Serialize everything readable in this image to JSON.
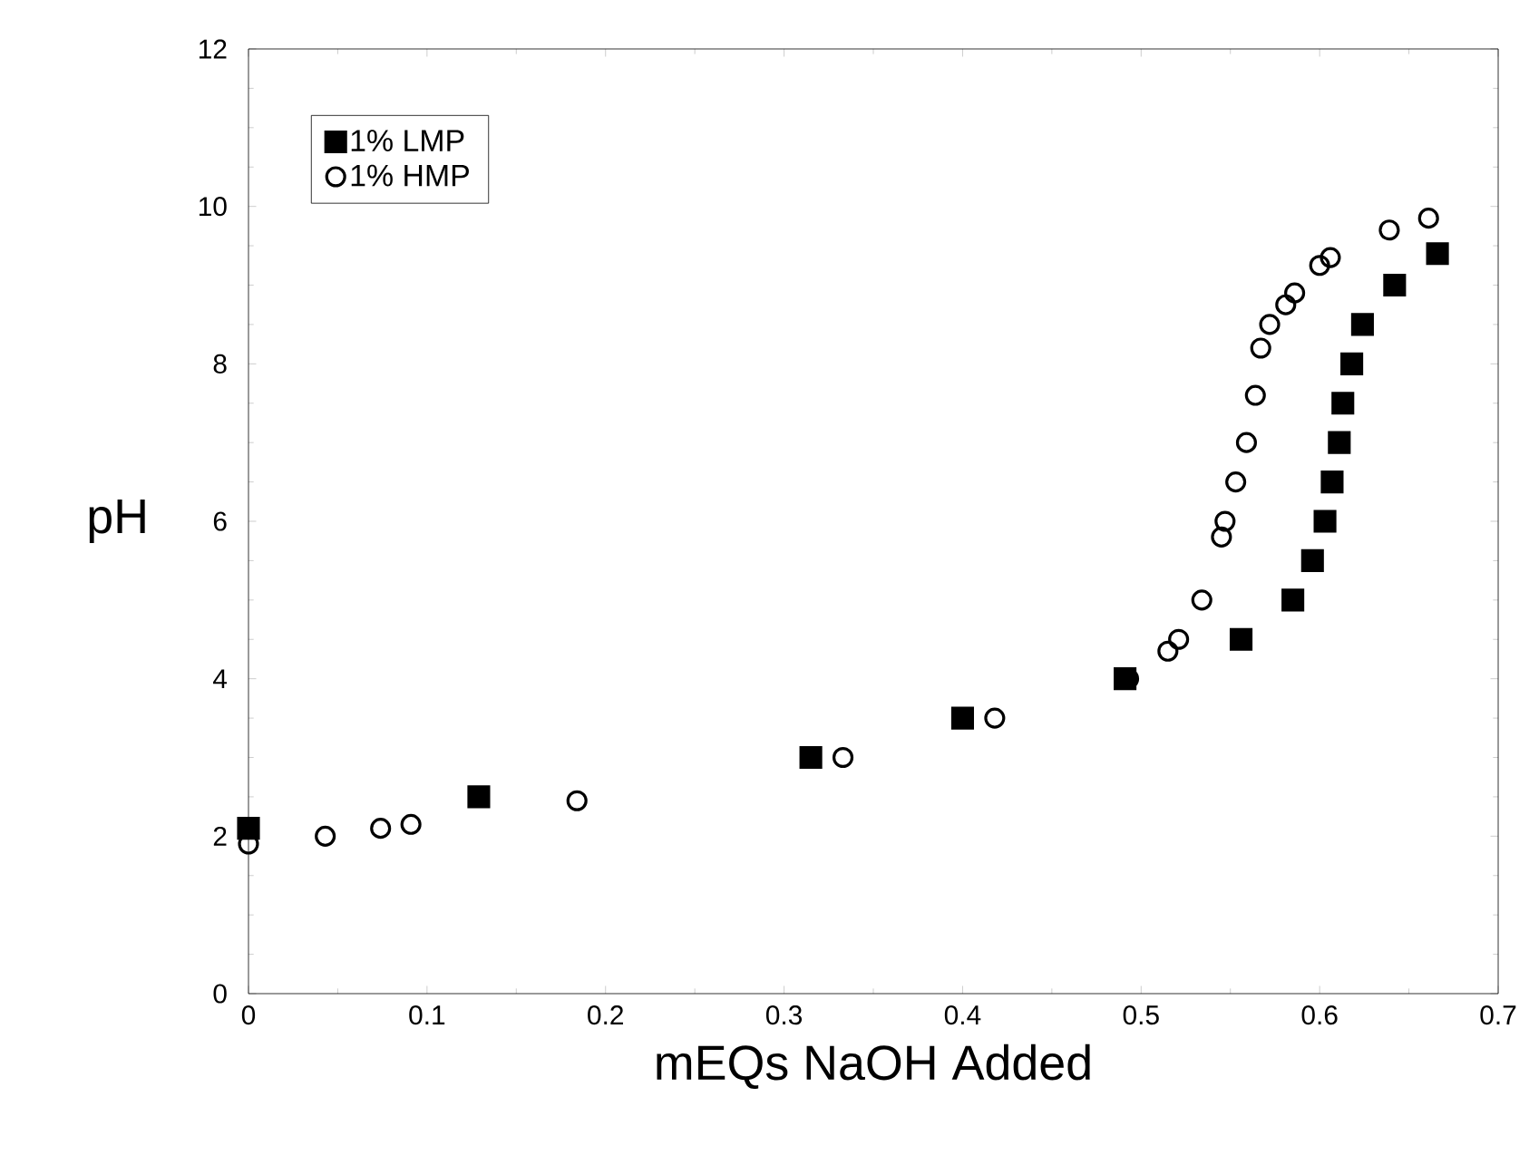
{
  "chart_data": {
    "type": "scatter",
    "xlabel": "mEQs NaOH Added",
    "ylabel": "pH",
    "xlim": [
      0,
      0.7
    ],
    "xticks": [
      0,
      0.1,
      0.2,
      0.3,
      0.4,
      0.5,
      0.6,
      0.7
    ],
    "ylim": [
      0,
      12
    ],
    "yticks": [
      0,
      2,
      4,
      6,
      8,
      10,
      12
    ],
    "grid": false,
    "legend": "top left",
    "series": [
      {
        "name": "1% LMP",
        "color": "#000000",
        "marker": "square",
        "x": [
          0,
          0.129,
          0.315,
          0.4,
          0.491,
          0.556,
          0.585,
          0.596,
          0.603,
          0.607,
          0.611,
          0.613,
          0.618,
          0.624,
          0.642,
          0.666
        ],
        "values": [
          2.1,
          2.5,
          3.0,
          3.5,
          4.0,
          4.5,
          5.0,
          5.5,
          6.0,
          6.5,
          7.0,
          7.5,
          8.0,
          8.5,
          9.0,
          9.4
        ]
      },
      {
        "name": "1% HMP",
        "color": "#000000",
        "marker": "circle",
        "x": [
          0,
          0.043,
          0.074,
          0.091,
          0.184,
          0.333,
          0.418,
          0.493,
          0.515,
          0.521,
          0.534,
          0.545,
          0.547,
          0.553,
          0.559,
          0.564,
          0.567,
          0.572,
          0.581,
          0.586,
          0.6,
          0.606,
          0.639,
          0.661
        ],
        "values": [
          1.9,
          2.0,
          2.1,
          2.15,
          2.45,
          3.0,
          3.5,
          4.0,
          4.35,
          4.5,
          5.0,
          5.8,
          6.0,
          6.5,
          7.0,
          7.6,
          8.2,
          8.5,
          8.75,
          8.9,
          9.25,
          9.35,
          9.7,
          9.85
        ]
      }
    ]
  }
}
